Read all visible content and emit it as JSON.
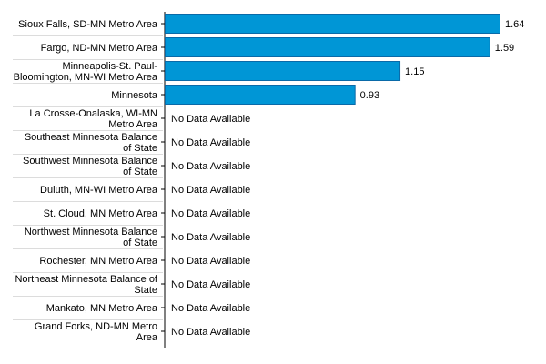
{
  "chart_data": {
    "type": "bar",
    "orientation": "horizontal",
    "categories": [
      "Sioux Falls, SD-MN Metro Area",
      "Fargo, ND-MN Metro Area",
      "Minneapolis-St. Paul-Bloomington, MN-WI Metro Area",
      "Minnesota",
      "La Crosse-Onalaska, WI-MN Metro Area",
      "Southeast Minnesota Balance of State",
      "Southwest Minnesota Balance of State",
      "Duluth, MN-WI Metro Area",
      "St. Cloud, MN Metro Area",
      "Northwest Minnesota Balance of State",
      "Rochester, MN Metro Area",
      "Northeast Minnesota Balance of State",
      "Mankato, MN Metro Area",
      "Grand Forks, ND-MN Metro Area"
    ],
    "category_lines": [
      [
        "Sioux Falls, SD-MN Metro Area"
      ],
      [
        "Fargo, ND-MN Metro Area"
      ],
      [
        "Minneapolis-St. Paul-",
        "Bloomington, MN-WI Metro Area"
      ],
      [
        "Minnesota"
      ],
      [
        "La Crosse-Onalaska, WI-MN",
        "Metro Area"
      ],
      [
        "Southeast Minnesota Balance",
        "of State"
      ],
      [
        "Southwest Minnesota Balance",
        "of State"
      ],
      [
        "Duluth, MN-WI Metro Area"
      ],
      [
        "St. Cloud, MN Metro Area"
      ],
      [
        "Northwest Minnesota Balance",
        "of State"
      ],
      [
        "Rochester, MN Metro Area"
      ],
      [
        "Northeast Minnesota Balance of",
        "State"
      ],
      [
        "Mankato, MN Metro Area"
      ],
      [
        "Grand Forks, ND-MN Metro",
        "Area"
      ]
    ],
    "values": [
      1.64,
      1.59,
      1.15,
      0.93,
      null,
      null,
      null,
      null,
      null,
      null,
      null,
      null,
      null,
      null
    ],
    "value_labels": [
      "1.64",
      "1.59",
      "1.15",
      "0.93",
      "No Data Available",
      "No Data Available",
      "No Data Available",
      "No Data Available",
      "No Data Available",
      "No Data Available",
      "No Data Available",
      "No Data Available",
      "No Data Available",
      "No Data Available"
    ],
    "xlim": [
      0,
      1.64
    ],
    "grid": false,
    "bar_color": "#0096d6",
    "bar_edge_color": "#0a6aa8"
  }
}
